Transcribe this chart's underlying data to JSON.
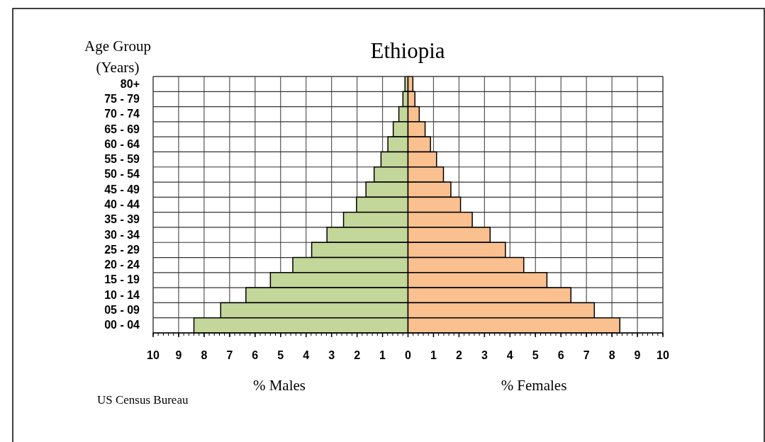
{
  "chart_data": {
    "type": "bar",
    "orientation": "horizontal",
    "stacked": true,
    "title": "Ethiopia",
    "ylabel": "Age Group\n(Years)",
    "categories": [
      "80+",
      "75 - 79",
      "70 - 74",
      "65 - 69",
      "60 - 64",
      "55 - 59",
      "50 - 54",
      "45 - 49",
      "40 - 44",
      "35 - 39",
      "30 - 34",
      "25 - 29",
      "20 - 24",
      "15 - 19",
      "10 - 14",
      "05 - 09",
      "00 - 04"
    ],
    "series": [
      {
        "name": "% Males",
        "color": "#c4d79b",
        "values": [
          -0.12,
          -0.2,
          -0.36,
          -0.58,
          -0.79,
          -1.06,
          -1.33,
          -1.65,
          -2.02,
          -2.53,
          -3.18,
          -3.78,
          -4.52,
          -5.4,
          -6.36,
          -7.35,
          -8.4
        ]
      },
      {
        "name": "% Females",
        "color": "#fac090",
        "values": [
          0.19,
          0.27,
          0.44,
          0.67,
          0.88,
          1.12,
          1.39,
          1.68,
          2.06,
          2.52,
          3.22,
          3.82,
          4.54,
          5.45,
          6.39,
          7.31,
          8.31
        ]
      }
    ],
    "xlim": [
      -10,
      10
    ],
    "xticks": [
      {
        "value": -10,
        "label": "10"
      },
      {
        "value": -9,
        "label": "9"
      },
      {
        "value": -8,
        "label": "8"
      },
      {
        "value": -7,
        "label": "7"
      },
      {
        "value": -6,
        "label": "6"
      },
      {
        "value": -5,
        "label": "5"
      },
      {
        "value": -4,
        "label": "4"
      },
      {
        "value": -3,
        "label": "3"
      },
      {
        "value": -2,
        "label": "2"
      },
      {
        "value": -1,
        "label": "1"
      },
      0,
      1,
      2,
      3,
      4,
      5,
      6,
      7,
      8,
      9,
      10
    ],
    "grid": true,
    "legend": false,
    "annotations": [
      "US Census Bureau"
    ]
  }
}
